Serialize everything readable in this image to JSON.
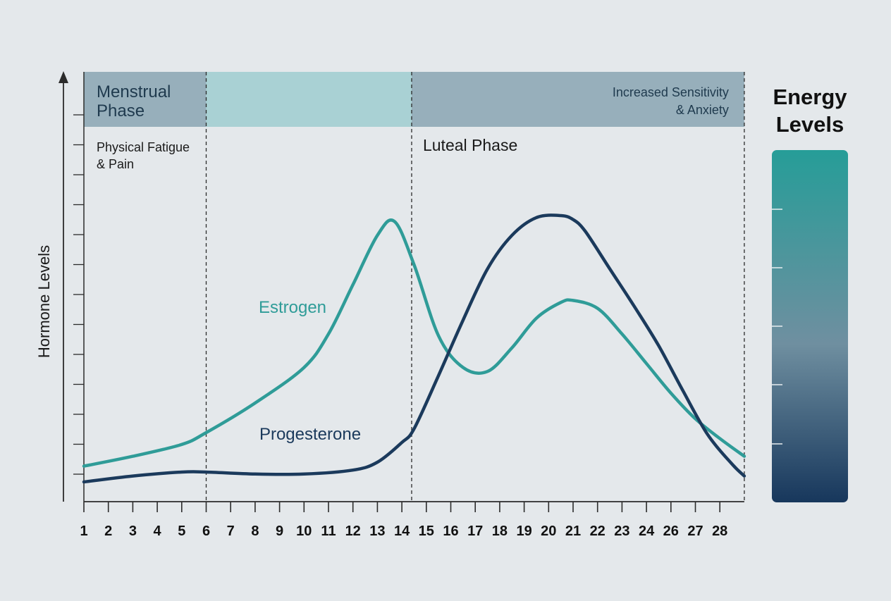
{
  "chart_data": {
    "type": "line",
    "title": "",
    "xlabel": "",
    "ylabel": "Hormone Levels",
    "x_ticks": [
      "1",
      "2",
      "3",
      "4",
      "5",
      "6",
      "7",
      "8",
      "9",
      "10",
      "11",
      "12",
      "13",
      "14",
      "15",
      "16",
      "17",
      "18",
      "19",
      "20",
      "21",
      "22",
      "23",
      "24",
      "26",
      "27",
      "28"
    ],
    "phases": [
      {
        "name": "menstrual",
        "label_lines": [
          "Menstrual",
          "Phase"
        ],
        "start_day": 1,
        "end_day": 6,
        "color": "#97afbb"
      },
      {
        "name": "follicular",
        "label_lines": [],
        "start_day": 6,
        "end_day": 14.4,
        "color": "#a9d1d4"
      },
      {
        "name": "luteal",
        "label_lines": [
          "Increased Sensitivity",
          "& Anxiety"
        ],
        "start_day": 14.4,
        "end_day": 28,
        "color": "#97afbb"
      }
    ],
    "annotations": [
      {
        "name": "fatigue",
        "lines": [
          "Physical Fatigue",
          "& Pain"
        ]
      },
      {
        "name": "luteal",
        "lines": [
          "Luteal Phase"
        ]
      }
    ],
    "series": [
      {
        "name": "Estrogen",
        "color": "#2f9c98",
        "x": [
          1,
          3,
          5,
          6,
          8,
          10,
          11,
          12,
          13,
          13.7,
          14.5,
          15.5,
          16.5,
          17.5,
          18.5,
          19.5,
          20.5,
          21,
          22,
          23,
          24,
          25,
          26,
          27,
          28
        ],
        "y": [
          1.8,
          2.3,
          2.9,
          3.5,
          5.0,
          6.8,
          8.5,
          11.0,
          13.5,
          14.2,
          12.0,
          8.4,
          6.8,
          6.6,
          7.8,
          9.3,
          10.1,
          10.2,
          9.8,
          8.5,
          7.0,
          5.5,
          4.2,
          3.2,
          2.3
        ]
      },
      {
        "name": "Progesterone",
        "color": "#1b3a5c",
        "x": [
          1,
          3,
          5,
          6,
          8,
          10,
          12,
          13,
          14,
          14.5,
          15.5,
          16.5,
          17.5,
          18.5,
          19.5,
          20.5,
          21,
          21.5,
          22.5,
          23.5,
          24.5,
          25.5,
          26.5,
          27.5,
          28
        ],
        "y": [
          1.0,
          1.3,
          1.5,
          1.5,
          1.4,
          1.4,
          1.6,
          2.0,
          3.0,
          3.7,
          6.4,
          9.2,
          11.8,
          13.5,
          14.4,
          14.5,
          14.3,
          13.7,
          11.8,
          9.9,
          7.9,
          5.6,
          3.4,
          1.9,
          1.3
        ]
      }
    ],
    "ylim": [
      0,
      16
    ],
    "legend": {
      "title_lines": [
        "Energy",
        "Levels"
      ],
      "gradient_top": "#269d98",
      "gradient_mid": "#6f8fa0",
      "gradient_bottom": "#17375c"
    }
  }
}
